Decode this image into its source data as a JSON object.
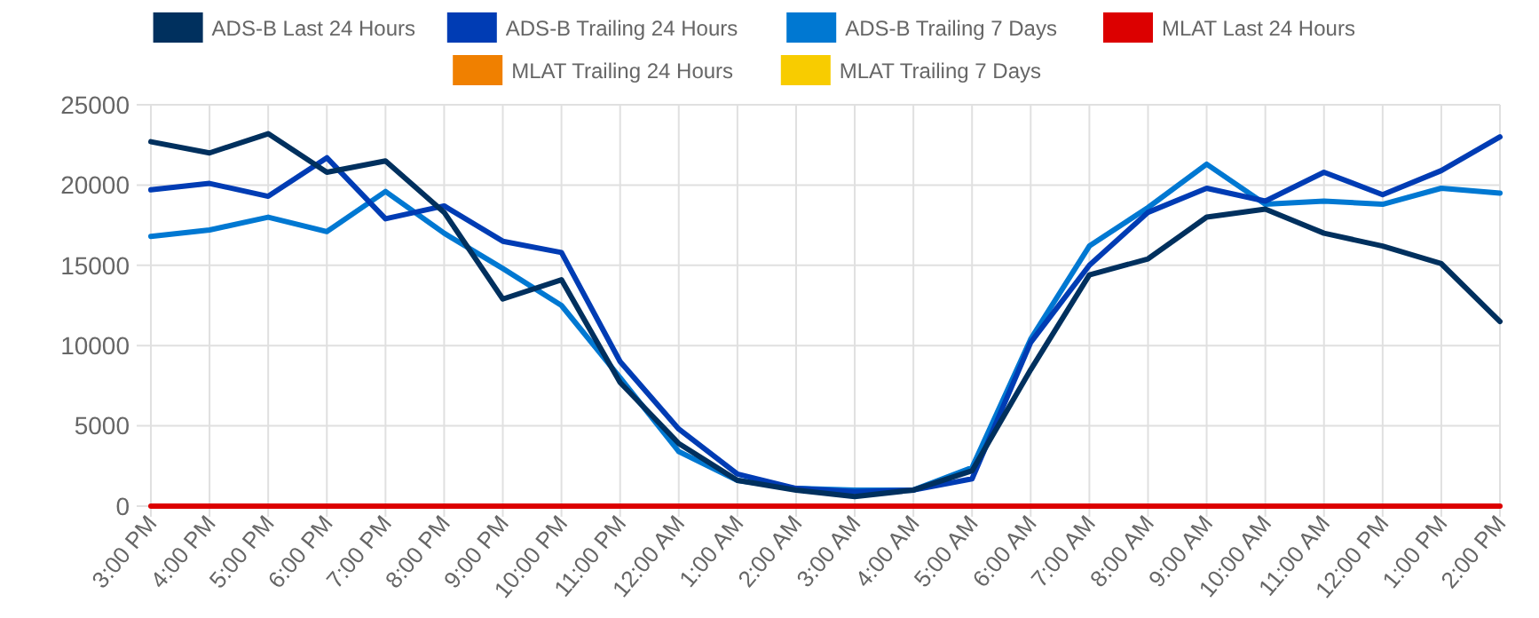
{
  "chart_data": {
    "type": "line",
    "categories": [
      "3:00 PM",
      "4:00 PM",
      "5:00 PM",
      "6:00 PM",
      "7:00 PM",
      "8:00 PM",
      "9:00 PM",
      "10:00 PM",
      "11:00 PM",
      "12:00 AM",
      "1:00 AM",
      "2:00 AM",
      "3:00 AM",
      "4:00 AM",
      "5:00 AM",
      "6:00 AM",
      "7:00 AM",
      "8:00 AM",
      "9:00 AM",
      "10:00 AM",
      "11:00 AM",
      "12:00 PM",
      "1:00 PM",
      "2:00 PM"
    ],
    "series": [
      {
        "name": "ADS-B Last 24 Hours",
        "color": "#00305e",
        "values": [
          22700,
          22000,
          23200,
          20800,
          21500,
          18300,
          12900,
          14100,
          7700,
          3900,
          1600,
          1000,
          600,
          1000,
          2200,
          8500,
          14400,
          15400,
          18000,
          18500,
          17000,
          16200,
          15100,
          11500
        ]
      },
      {
        "name": "ADS-B Trailing 24 Hours",
        "color": "#003cb4",
        "values": [
          19700,
          20100,
          19300,
          21700,
          17900,
          18700,
          16500,
          15800,
          9000,
          4800,
          2000,
          1100,
          900,
          1000,
          1700,
          10200,
          15000,
          18300,
          19800,
          19000,
          20800,
          19400,
          20900,
          23000
        ]
      },
      {
        "name": "ADS-B Trailing 7 Days",
        "color": "#0078d2",
        "values": [
          16800,
          17200,
          18000,
          17100,
          19600,
          17000,
          14800,
          12500,
          8000,
          3400,
          1600,
          1100,
          1000,
          1000,
          2400,
          10400,
          16200,
          18600,
          21300,
          18800,
          19000,
          18800,
          19800,
          19500
        ]
      },
      {
        "name": "MLAT Last 24 Hours",
        "color": "#dc0000",
        "values": [
          0,
          0,
          0,
          0,
          0,
          0,
          0,
          0,
          0,
          0,
          0,
          0,
          0,
          0,
          0,
          0,
          0,
          0,
          0,
          0,
          0,
          0,
          0,
          0
        ]
      },
      {
        "name": "MLAT Trailing 24 Hours",
        "color": "#f08000",
        "values": [
          null,
          null,
          null,
          null,
          null,
          null,
          null,
          null,
          null,
          null,
          null,
          null,
          null,
          null,
          null,
          null,
          null,
          null,
          null,
          null,
          null,
          null,
          null,
          null
        ]
      },
      {
        "name": "MLAT Trailing 7 Days",
        "color": "#f8cc00",
        "values": [
          null,
          null,
          null,
          null,
          null,
          null,
          null,
          null,
          null,
          null,
          null,
          null,
          null,
          null,
          null,
          null,
          null,
          null,
          null,
          null,
          null,
          null,
          null,
          null
        ]
      }
    ],
    "ylim": [
      0,
      25000
    ],
    "yticks": [
      0,
      5000,
      10000,
      15000,
      20000,
      25000
    ],
    "grid": true,
    "legend": "top",
    "marker": "none",
    "line_style": "solid"
  }
}
